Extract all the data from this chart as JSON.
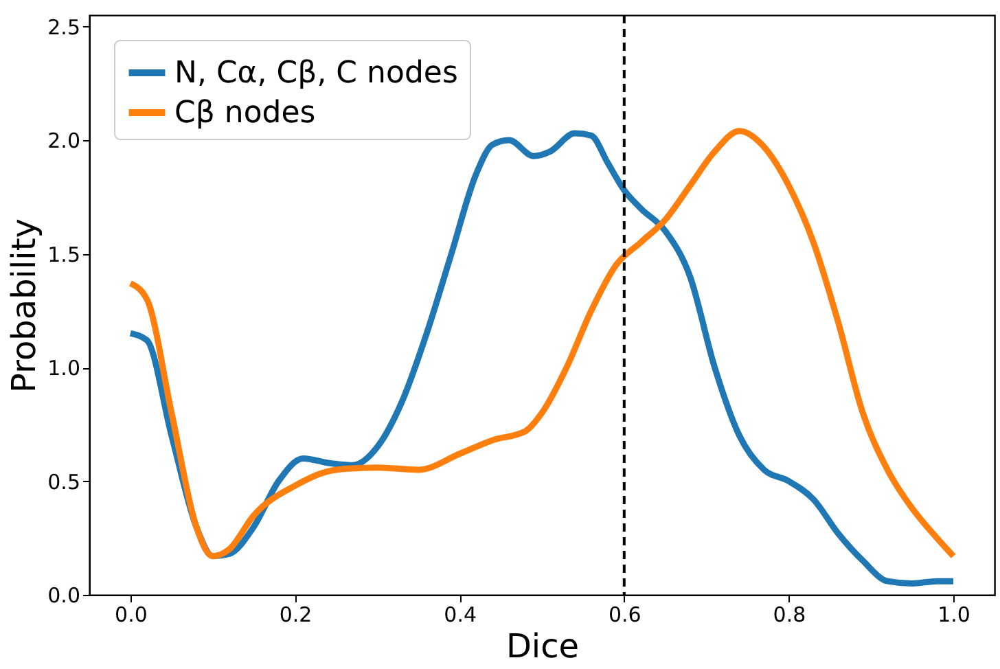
{
  "chart_data": {
    "type": "line",
    "xlabel": "Dice",
    "ylabel": "Probability",
    "xlim": [
      -0.05,
      1.05
    ],
    "ylim": [
      0,
      2.55
    ],
    "xticks": [
      {
        "value": 0,
        "label": "0.0"
      },
      {
        "value": 0.2,
        "label": "0.2"
      },
      {
        "value": 0.4,
        "label": "0.4"
      },
      {
        "value": 0.6,
        "label": "0.6"
      },
      {
        "value": 0.8,
        "label": "0.8"
      },
      {
        "value": 1,
        "label": "1.0"
      }
    ],
    "yticks": [
      {
        "value": 0,
        "label": "0.0"
      },
      {
        "value": 0.5,
        "label": "0.5"
      },
      {
        "value": 1,
        "label": "1.0"
      },
      {
        "value": 1.5,
        "label": "1.5"
      },
      {
        "value": 2,
        "label": "2.0"
      },
      {
        "value": 2.5,
        "label": "2.5"
      }
    ],
    "legend": "top left",
    "grid": false,
    "line_style": "solid",
    "ref_lines": [
      {
        "axis": "x",
        "value": 0.6,
        "color": "#000000",
        "line_style": "dashed"
      }
    ],
    "series": [
      {
        "name": "N, Cα, Cβ, C nodes",
        "color": "#1f77b4",
        "x": [
          0,
          0.02,
          0.05,
          0.08,
          0.1,
          0.12,
          0.15,
          0.18,
          0.21,
          0.24,
          0.27,
          0.3,
          0.33,
          0.36,
          0.39,
          0.42,
          0.44,
          0.46,
          0.49,
          0.51,
          0.54,
          0.56,
          0.58,
          0.6,
          0.62,
          0.65,
          0.68,
          0.71,
          0.74,
          0.77,
          0.8,
          0.83,
          0.86,
          0.89,
          0.92,
          0.95,
          0.98,
          1.0
        ],
        "values": [
          1.15,
          1.12,
          0.7,
          0.3,
          0.17,
          0.18,
          0.3,
          0.5,
          0.6,
          0.58,
          0.57,
          0.65,
          0.85,
          1.15,
          1.5,
          1.85,
          1.98,
          2.0,
          1.93,
          1.95,
          2.03,
          2.02,
          1.9,
          1.78,
          1.7,
          1.6,
          1.4,
          1.0,
          0.7,
          0.55,
          0.5,
          0.42,
          0.27,
          0.15,
          0.06,
          0.05,
          0.06,
          0.06
        ]
      },
      {
        "name": "Cβ nodes",
        "color": "#ff7f0e",
        "x": [
          0,
          0.02,
          0.05,
          0.08,
          0.1,
          0.12,
          0.15,
          0.2,
          0.25,
          0.3,
          0.35,
          0.4,
          0.44,
          0.48,
          0.5,
          0.53,
          0.56,
          0.59,
          0.62,
          0.65,
          0.68,
          0.71,
          0.74,
          0.77,
          0.8,
          0.83,
          0.86,
          0.89,
          0.92,
          0.95,
          0.98,
          1.0
        ],
        "values": [
          1.37,
          1.3,
          0.8,
          0.3,
          0.17,
          0.2,
          0.35,
          0.48,
          0.55,
          0.56,
          0.55,
          0.62,
          0.68,
          0.72,
          0.8,
          1.0,
          1.25,
          1.45,
          1.55,
          1.65,
          1.8,
          1.95,
          2.04,
          1.97,
          1.8,
          1.55,
          1.2,
          0.8,
          0.55,
          0.38,
          0.25,
          0.17
        ]
      }
    ]
  }
}
